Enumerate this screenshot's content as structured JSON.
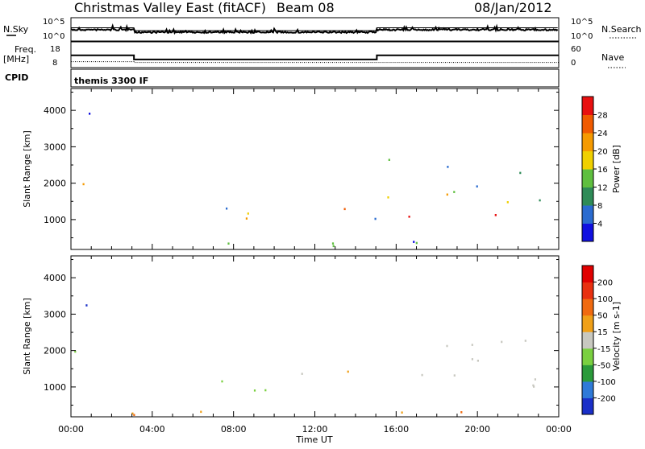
{
  "header": {
    "station": "Christmas Valley East (fitACF)",
    "beam": "Beam 08",
    "date": "08/Jan/2012"
  },
  "top_panels": {
    "nsky_label": "N.Sky",
    "nsky_ticks": [
      "10^5",
      "10^0"
    ],
    "nsearch_label": "N.Search",
    "nsearch_ticks": [
      "10^5",
      "10^0"
    ],
    "freq_label": "Freq.",
    "freq_unit": "[MHz]",
    "freq_ticks": [
      "18",
      "8"
    ],
    "nave_label": "Nave",
    "nave_ticks": [
      "60",
      "0"
    ],
    "cpid_label": "CPID",
    "cpid_value": "themis 3300 IF"
  },
  "chart_data": [
    {
      "type": "heatmap",
      "title": "",
      "xlabel": "Time UT",
      "ylabel": "Slant Range [km]",
      "x_ticks": [
        "00:00",
        "04:00",
        "08:00",
        "12:00",
        "16:00",
        "20:00",
        "00:00"
      ],
      "xlim_hours": [
        0,
        24
      ],
      "y_ticks": [
        1000,
        2000,
        3000,
        4000
      ],
      "ylim": [
        180,
        4600
      ],
      "colorbar": {
        "label": "Power [dB]",
        "ticks": [
          "4",
          "8",
          "12",
          "16",
          "20",
          "24",
          "28"
        ],
        "colors": [
          "#1010e0",
          "#2a6bd0",
          "#2e8b57",
          "#5fbf3f",
          "#f0d000",
          "#f59a00",
          "#f05a00",
          "#e81010"
        ]
      }
    },
    {
      "type": "heatmap",
      "title": "",
      "xlabel": "Time UT",
      "ylabel": "Slant Range [km]",
      "x_ticks": [
        "00:00",
        "04:00",
        "08:00",
        "12:00",
        "16:00",
        "20:00",
        "00:00"
      ],
      "xlim_hours": [
        0,
        24
      ],
      "y_ticks": [
        1000,
        2000,
        3000,
        4000
      ],
      "ylim": [
        180,
        4600
      ],
      "colorbar": {
        "label": "Velocity [m s-1]",
        "ticks": [
          "200",
          "100",
          "50",
          "15",
          "-15",
          "-50",
          "-100",
          "-200"
        ],
        "colors": [
          "#1a2fc8",
          "#2f7ad8",
          "#2a9a3a",
          "#7ad040",
          "#c8c8c0",
          "#f0a018",
          "#f06a10",
          "#e83010",
          "#e00000"
        ]
      }
    }
  ]
}
